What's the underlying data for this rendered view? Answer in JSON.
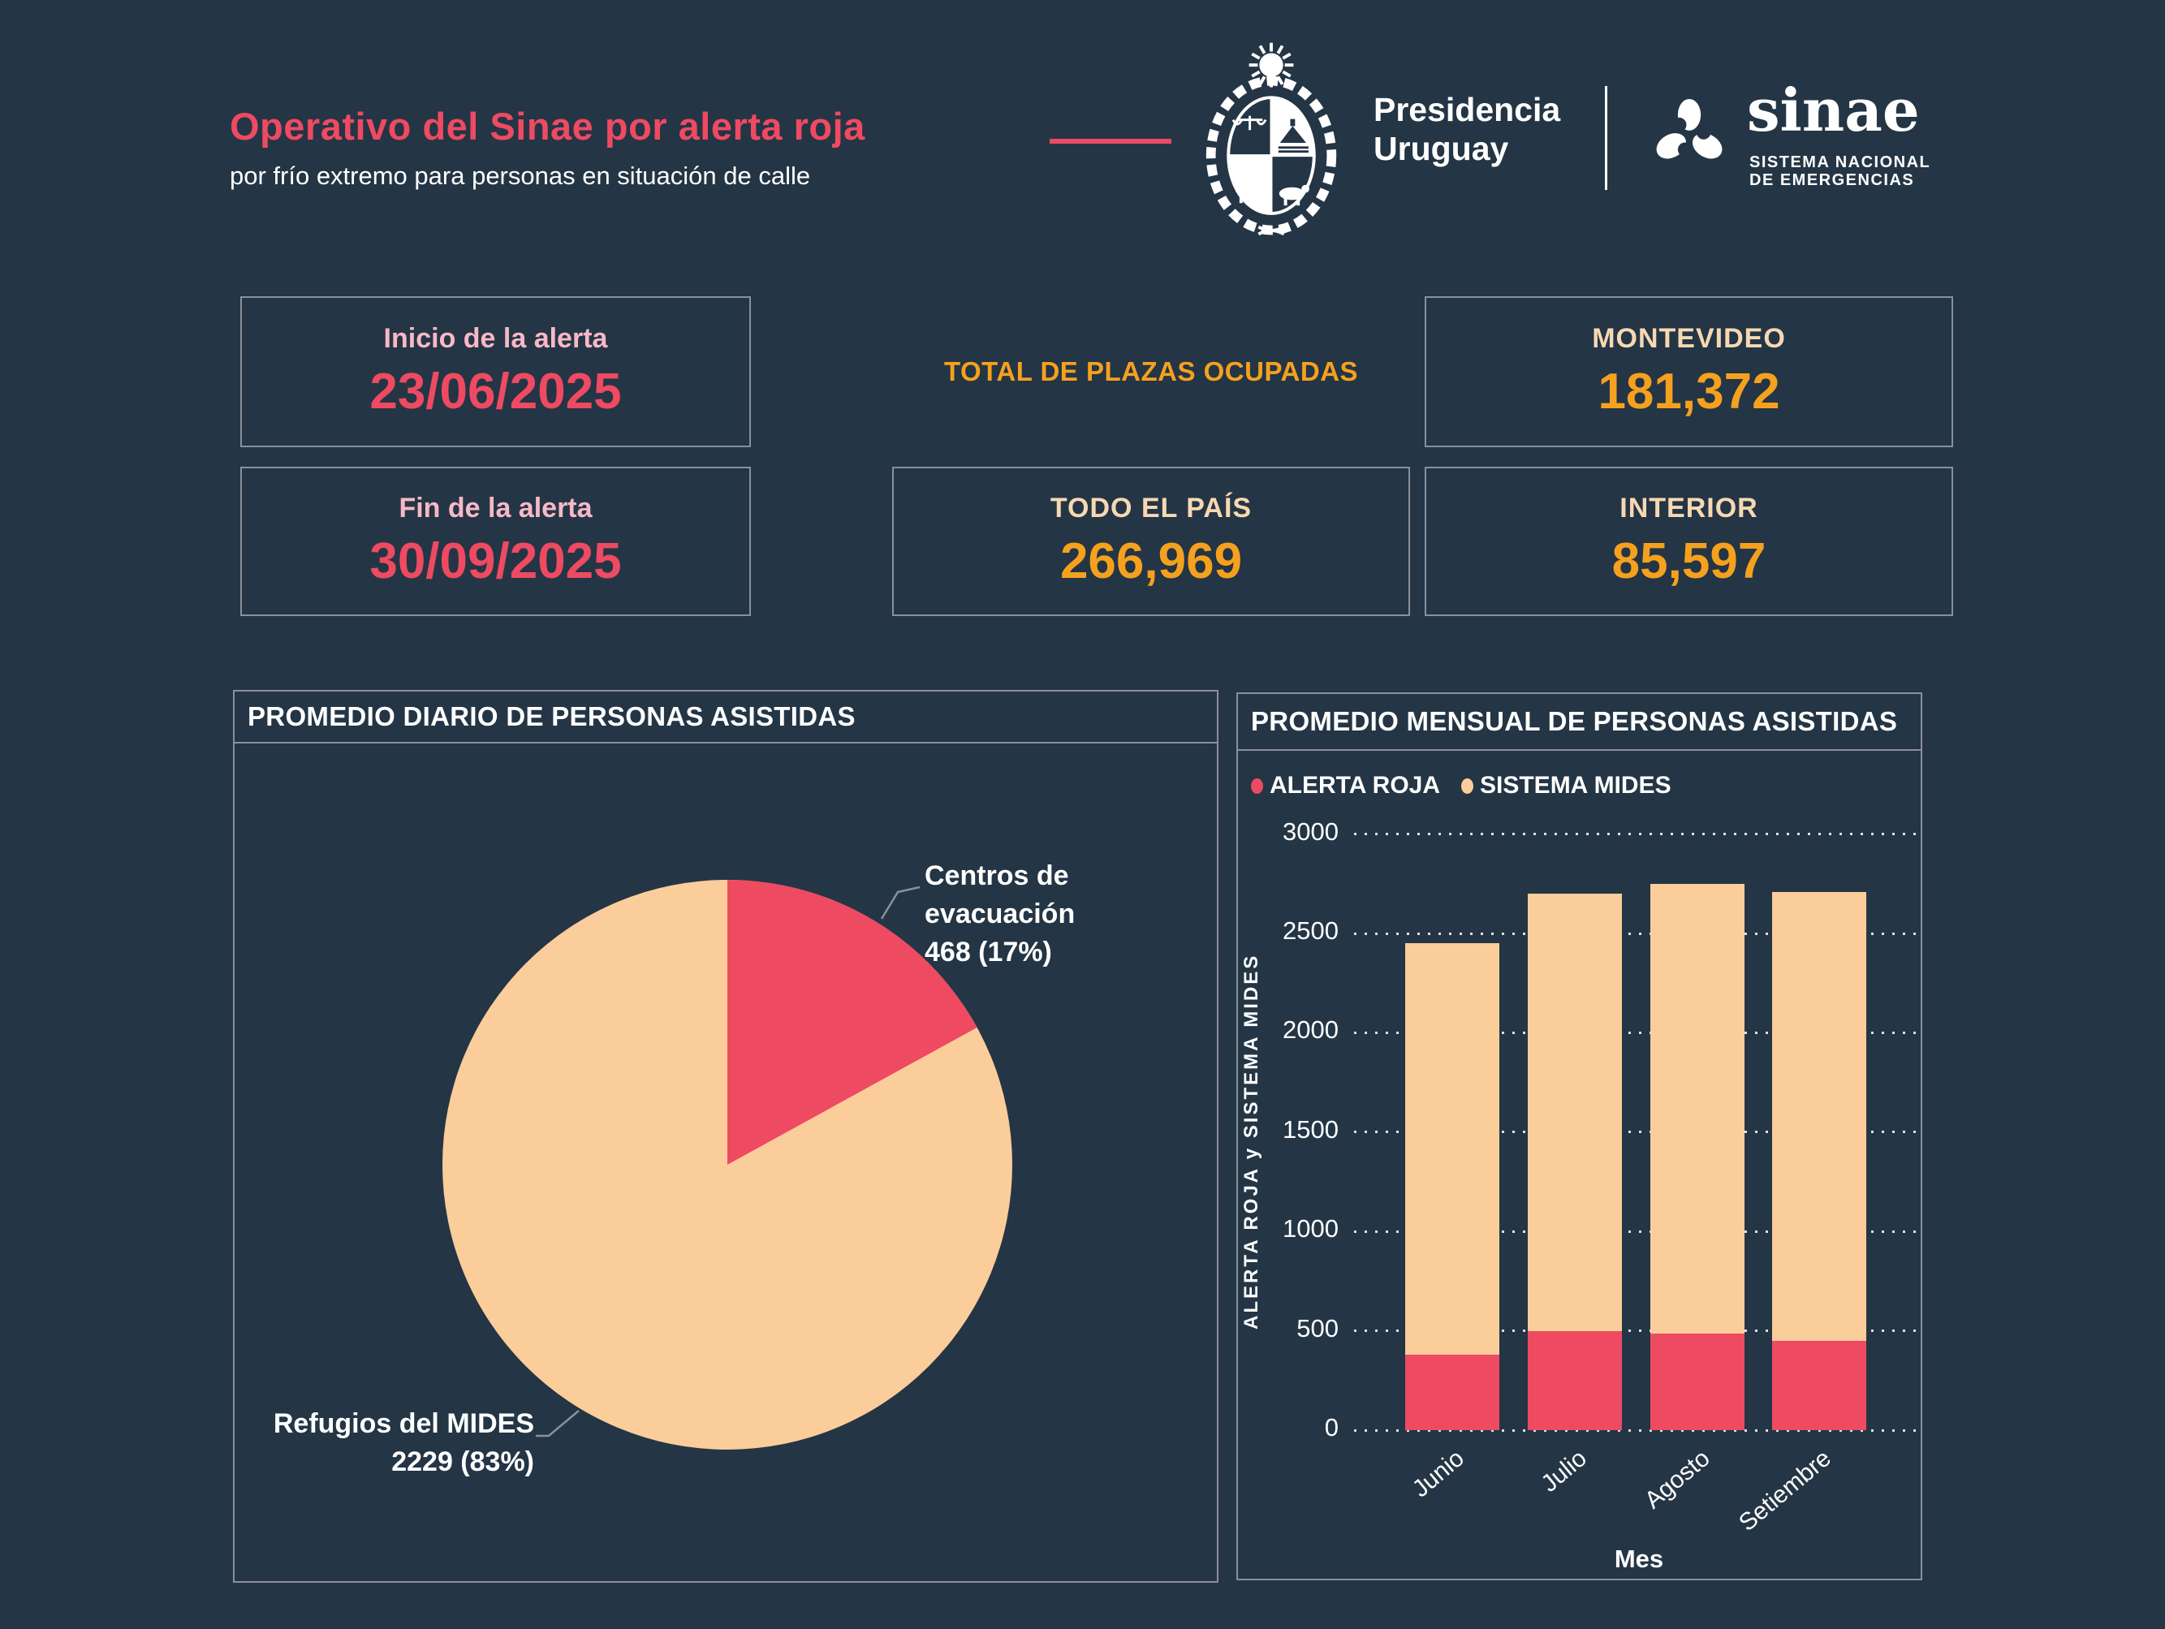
{
  "header": {
    "title": "Operativo del Sinae por alerta roja",
    "subtitle": "por frío extremo para personas en situación de calle",
    "presidencia_line1": "Presidencia",
    "presidencia_line2": "Uruguay",
    "sinae_wordmark": "sinae",
    "sinae_sub1": "SISTEMA NACIONAL",
    "sinae_sub2": "DE EMERGENCIAS"
  },
  "alert": {
    "start_label": "Inicio de la alerta",
    "start_date": "23/06/2025",
    "end_label": "Fin de la alerta",
    "end_date": "30/09/2025"
  },
  "plazas": {
    "section_label": "TOTAL DE PLAZAS OCUPADAS",
    "montevideo_label": "MONTEVIDEO",
    "montevideo_value": "181,372",
    "pais_label": "TODO EL PAÍS",
    "pais_value": "266,969",
    "interior_label": "INTERIOR",
    "interior_value": "85,597"
  },
  "colors": {
    "background": "#243545",
    "accent_red": "#EE4A62",
    "accent_pink": "#F8B8C6",
    "accent_orange": "#F5A11E",
    "accent_cream": "#F7D8B2",
    "accent_peach": "#FBCD9A",
    "border_gray": "#8A9099",
    "text_white": "#FFFFFF"
  },
  "chart_data": [
    {
      "type": "pie",
      "title": "PROMEDIO DIARIO DE PERSONAS ASISTIDAS",
      "start_angle_deg": 0,
      "direction": "clockwise",
      "slices": [
        {
          "label": "Centros de evacuación",
          "value": 468,
          "pct": 17,
          "color": "#EE4A62",
          "callout_line1": "Centros de evacuación",
          "callout_line2": "468 (17%)"
        },
        {
          "label": "Refugios del MIDES",
          "value": 2229,
          "pct": 83,
          "color": "#FBCD9A",
          "callout_line1": "Refugios del MIDES",
          "callout_line2": "2229 (83%)"
        }
      ]
    },
    {
      "type": "bar",
      "stacked": true,
      "title": "PROMEDIO MENSUAL DE PERSONAS ASISTIDAS",
      "categories": [
        "Junio",
        "Julio",
        "Agosto",
        "Setiembre"
      ],
      "series": [
        {
          "name": "ALERTA ROJA",
          "color": "#EE4A62",
          "values": [
            380,
            500,
            485,
            450
          ]
        },
        {
          "name": "SISTEMA MIDES",
          "color": "#FBCD9A",
          "values": [
            2070,
            2200,
            2265,
            2260
          ]
        }
      ],
      "totals": [
        2450,
        2700,
        2750,
        2710
      ],
      "xlabel": "Mes",
      "ylabel": "ALERTA ROJA y SISTEMA MIDES",
      "yticks": [
        0,
        500,
        1000,
        1500,
        2000,
        2500,
        3000
      ],
      "ylim": [
        0,
        3000
      ],
      "grid": "dotted-horizontal",
      "legend_position": "top-left"
    }
  ]
}
